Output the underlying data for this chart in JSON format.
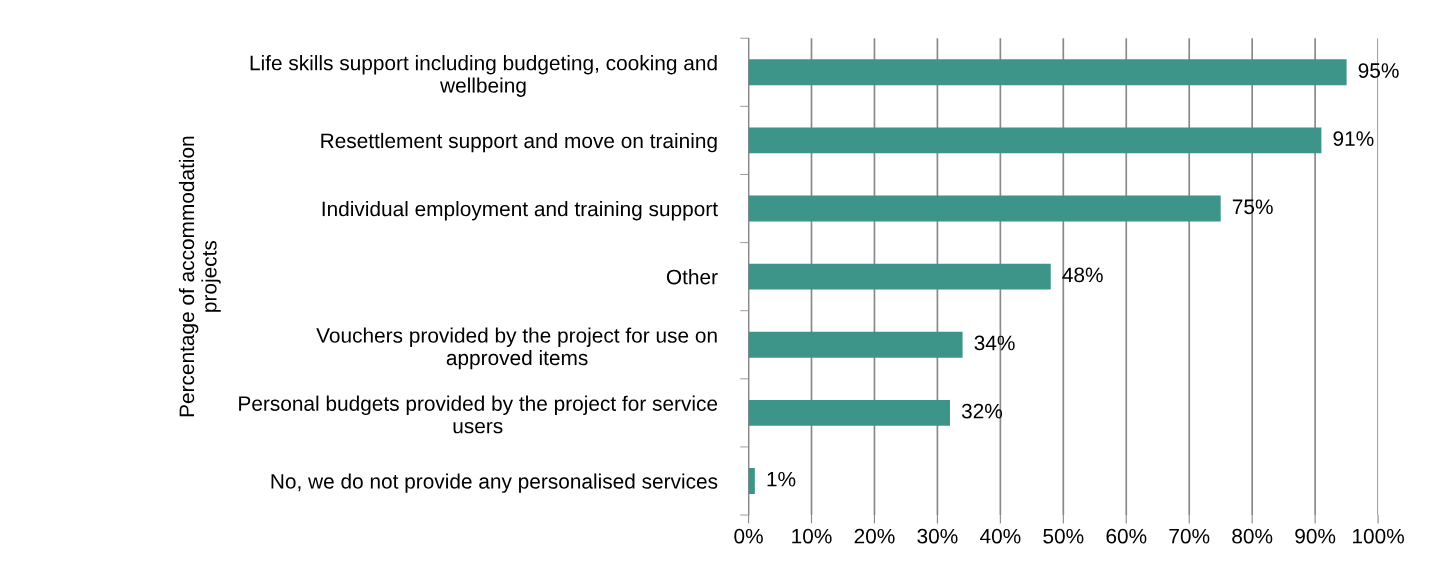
{
  "chart_data": {
    "type": "bar",
    "orientation": "horizontal",
    "ylabel": "Percentage of accommodation\nprojects",
    "categories": [
      "Life skills support including budgeting, cooking and\nwellbeing",
      "Resettlement support and move on training",
      "Individual employment and training support",
      "Other",
      "Vouchers provided by the project for use on\napproved items",
      "Personal budgets provided by the project for service\nusers",
      "No, we do not provide any personalised services"
    ],
    "values": [
      95,
      91,
      75,
      48,
      34,
      32,
      1
    ],
    "value_labels": [
      "95%",
      "91%",
      "75%",
      "48%",
      "34%",
      "32%",
      "1%"
    ],
    "color": "#3d9488",
    "xlim": [
      0,
      100
    ],
    "xticks": [
      {
        "value": 0,
        "label": "0%"
      },
      {
        "value": 10,
        "label": "10%"
      },
      {
        "value": 20,
        "label": "20%"
      },
      {
        "value": 30,
        "label": "30%"
      },
      {
        "value": 40,
        "label": "40%"
      },
      {
        "value": 50,
        "label": "50%"
      },
      {
        "value": 60,
        "label": "60%"
      },
      {
        "value": 70,
        "label": "70%"
      },
      {
        "value": 80,
        "label": "80%"
      },
      {
        "value": 90,
        "label": "90%"
      },
      {
        "value": 100,
        "label": "100%"
      }
    ],
    "grid": "x",
    "legend": false
  }
}
